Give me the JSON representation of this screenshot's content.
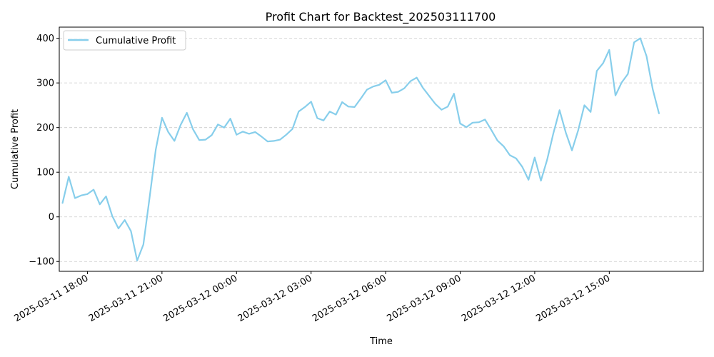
{
  "chart_data": {
    "type": "line",
    "title": "Profit Chart for Backtest_202503111700",
    "xlabel": "Time",
    "ylabel": "Cumulative Profit",
    "legend_position": "top-left",
    "grid": "y-dashed",
    "colors": {
      "line": "#87CEEB",
      "grid": "#cccccc",
      "axis": "#000000"
    },
    "xlim": [
      "2025-03-11 16:52",
      "2025-03-12 18:47"
    ],
    "ylim": [
      -122,
      425
    ],
    "x_ticks": [
      {
        "value": "2025-03-11 18:00",
        "label": "2025-03-11 18:00"
      },
      {
        "value": "2025-03-11 21:00",
        "label": "2025-03-11 21:00"
      },
      {
        "value": "2025-03-12 00:00",
        "label": "2025-03-12 00:00"
      },
      {
        "value": "2025-03-12 03:00",
        "label": "2025-03-12 03:00"
      },
      {
        "value": "2025-03-12 06:00",
        "label": "2025-03-12 06:00"
      },
      {
        "value": "2025-03-12 09:00",
        "label": "2025-03-12 09:00"
      },
      {
        "value": "2025-03-12 12:00",
        "label": "2025-03-12 12:00"
      },
      {
        "value": "2025-03-12 15:00",
        "label": "2025-03-12 15:00"
      }
    ],
    "y_ticks": [
      {
        "value": -100,
        "label": "−100"
      },
      {
        "value": 0,
        "label": "0"
      },
      {
        "value": 100,
        "label": "100"
      },
      {
        "value": 200,
        "label": "200"
      },
      {
        "value": 300,
        "label": "300"
      },
      {
        "value": 400,
        "label": "400"
      }
    ],
    "series": [
      {
        "name": "Cumulative Profit",
        "points": [
          [
            "2025-03-11 17:00",
            31
          ],
          [
            "2025-03-11 17:15",
            90
          ],
          [
            "2025-03-11 17:30",
            42
          ],
          [
            "2025-03-11 17:45",
            48
          ],
          [
            "2025-03-11 18:00",
            51
          ],
          [
            "2025-03-11 18:15",
            61
          ],
          [
            "2025-03-11 18:30",
            28
          ],
          [
            "2025-03-11 18:45",
            46
          ],
          [
            "2025-03-11 19:00",
            2
          ],
          [
            "2025-03-11 19:15",
            -26
          ],
          [
            "2025-03-11 19:30",
            -7
          ],
          [
            "2025-03-11 19:45",
            -32
          ],
          [
            "2025-03-11 20:00",
            -98
          ],
          [
            "2025-03-11 20:15",
            -62
          ],
          [
            "2025-03-11 20:30",
            43
          ],
          [
            "2025-03-11 20:45",
            151
          ],
          [
            "2025-03-11 21:00",
            222
          ],
          [
            "2025-03-11 21:15",
            190
          ],
          [
            "2025-03-11 21:30",
            170
          ],
          [
            "2025-03-11 21:45",
            206
          ],
          [
            "2025-03-11 22:00",
            233
          ],
          [
            "2025-03-11 22:15",
            196
          ],
          [
            "2025-03-11 22:30",
            172
          ],
          [
            "2025-03-11 22:45",
            173
          ],
          [
            "2025-03-11 23:00",
            183
          ],
          [
            "2025-03-11 23:15",
            207
          ],
          [
            "2025-03-11 23:30",
            200
          ],
          [
            "2025-03-11 23:45",
            220
          ],
          [
            "2025-03-12 00:00",
            184
          ],
          [
            "2025-03-12 00:15",
            191
          ],
          [
            "2025-03-12 00:30",
            186
          ],
          [
            "2025-03-12 00:45",
            190
          ],
          [
            "2025-03-12 01:00",
            180
          ],
          [
            "2025-03-12 01:15",
            169
          ],
          [
            "2025-03-12 01:30",
            170
          ],
          [
            "2025-03-12 01:45",
            173
          ],
          [
            "2025-03-12 02:00",
            184
          ],
          [
            "2025-03-12 02:15",
            197
          ],
          [
            "2025-03-12 02:30",
            236
          ],
          [
            "2025-03-12 02:45",
            246
          ],
          [
            "2025-03-12 03:00",
            258
          ],
          [
            "2025-03-12 03:15",
            221
          ],
          [
            "2025-03-12 03:30",
            216
          ],
          [
            "2025-03-12 03:45",
            236
          ],
          [
            "2025-03-12 04:00",
            229
          ],
          [
            "2025-03-12 04:15",
            257
          ],
          [
            "2025-03-12 04:30",
            247
          ],
          [
            "2025-03-12 04:45",
            246
          ],
          [
            "2025-03-12 05:00",
            265
          ],
          [
            "2025-03-12 05:15",
            285
          ],
          [
            "2025-03-12 05:30",
            292
          ],
          [
            "2025-03-12 05:45",
            296
          ],
          [
            "2025-03-12 06:00",
            306
          ],
          [
            "2025-03-12 06:15",
            278
          ],
          [
            "2025-03-12 06:30",
            280
          ],
          [
            "2025-03-12 06:45",
            288
          ],
          [
            "2025-03-12 07:00",
            304
          ],
          [
            "2025-03-12 07:15",
            312
          ],
          [
            "2025-03-12 07:30",
            289
          ],
          [
            "2025-03-12 07:45",
            271
          ],
          [
            "2025-03-12 08:00",
            253
          ],
          [
            "2025-03-12 08:15",
            240
          ],
          [
            "2025-03-12 08:30",
            247
          ],
          [
            "2025-03-12 08:45",
            276
          ],
          [
            "2025-03-12 09:00",
            209
          ],
          [
            "2025-03-12 09:15",
            201
          ],
          [
            "2025-03-12 09:30",
            211
          ],
          [
            "2025-03-12 09:45",
            212
          ],
          [
            "2025-03-12 10:00",
            218
          ],
          [
            "2025-03-12 10:15",
            195
          ],
          [
            "2025-03-12 10:30",
            171
          ],
          [
            "2025-03-12 10:45",
            158
          ],
          [
            "2025-03-12 11:00",
            138
          ],
          [
            "2025-03-12 11:15",
            131
          ],
          [
            "2025-03-12 11:30",
            112
          ],
          [
            "2025-03-12 11:45",
            83
          ],
          [
            "2025-03-12 12:00",
            133
          ],
          [
            "2025-03-12 12:15",
            81
          ],
          [
            "2025-03-12 12:30",
            128
          ],
          [
            "2025-03-12 12:45",
            187
          ],
          [
            "2025-03-12 13:00",
            239
          ],
          [
            "2025-03-12 13:15",
            189
          ],
          [
            "2025-03-12 13:30",
            149
          ],
          [
            "2025-03-12 13:45",
            194
          ],
          [
            "2025-03-12 14:00",
            250
          ],
          [
            "2025-03-12 14:15",
            235
          ],
          [
            "2025-03-12 14:30",
            327
          ],
          [
            "2025-03-12 14:45",
            344
          ],
          [
            "2025-03-12 15:00",
            374
          ],
          [
            "2025-03-12 15:15",
            272
          ],
          [
            "2025-03-12 15:30",
            301
          ],
          [
            "2025-03-12 15:45",
            320
          ],
          [
            "2025-03-12 16:00",
            391
          ],
          [
            "2025-03-12 16:15",
            400
          ],
          [
            "2025-03-12 16:30",
            360
          ],
          [
            "2025-03-12 16:45",
            286
          ],
          [
            "2025-03-12 17:00",
            232
          ]
        ]
      }
    ]
  }
}
